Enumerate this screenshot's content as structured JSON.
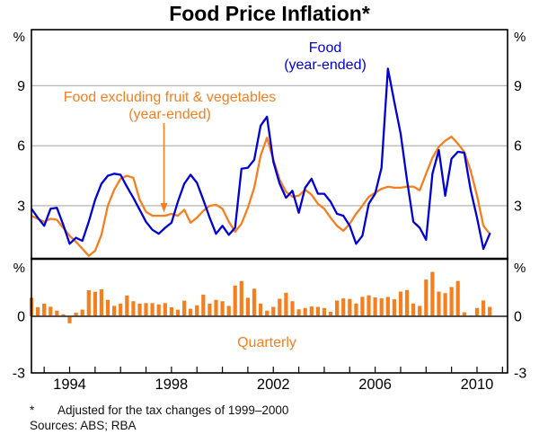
{
  "title": "Food Price Inflation*",
  "legend": {
    "line1": "Food",
    "line2": "(year-ended)"
  },
  "annotation": {
    "line1": "Food excluding fruit & vegetables",
    "line2": "(year-ended)"
  },
  "bars_label": "Quarterly",
  "footnote": {
    "marker": "*",
    "text": "Adjusted for the tax changes of 1999–2000"
  },
  "sources": "Sources: ABS; RBA",
  "axis": {
    "percent": "%"
  },
  "colors": {
    "blue": "#0000d2",
    "orange": "#f57e1f",
    "gridline": "#ababab",
    "frame": "#000000",
    "zero_line": "#3c3c3c"
  },
  "chart_data": {
    "type": "combo",
    "frequency": "quarterly",
    "x_start": 1992.5,
    "x_step": 0.25,
    "xlim": [
      1992.5,
      2011.2
    ],
    "xtick_label_years": [
      1994,
      1998,
      2002,
      2006,
      2010
    ],
    "xtick_labels": [
      "1994",
      "1998",
      "2002",
      "2006",
      "2010"
    ],
    "grid": true,
    "top_panel": {
      "ylim": [
        0.35,
        11.8
      ],
      "yticks": [
        9,
        6,
        3
      ],
      "unit": "%"
    },
    "bottom_panel": {
      "ylim": [
        -3,
        3
      ],
      "yticks": [
        0,
        -3
      ],
      "unit": "%"
    },
    "series": [
      {
        "name": "Food (year-ended)",
        "type": "line",
        "panel": "top",
        "color": "#0000d2",
        "values": [
          2.85,
          2.4,
          2.0,
          2.85,
          2.9,
          2.05,
          1.1,
          1.4,
          1.25,
          2.2,
          3.3,
          4.1,
          4.5,
          4.6,
          4.55,
          3.95,
          3.4,
          2.8,
          2.2,
          1.8,
          1.6,
          1.9,
          2.15,
          3.2,
          4.1,
          4.55,
          4.15,
          3.3,
          2.4,
          1.6,
          2.0,
          1.55,
          1.9,
          4.85,
          4.9,
          5.3,
          7.0,
          7.45,
          5.2,
          4.1,
          3.4,
          3.75,
          2.65,
          3.9,
          4.35,
          3.6,
          3.6,
          3.2,
          2.6,
          2.5,
          2.0,
          1.1,
          1.5,
          3.1,
          3.6,
          4.9,
          9.85,
          8.2,
          6.6,
          4.3,
          2.2,
          1.9,
          1.3,
          4.6,
          5.78,
          3.5,
          5.35,
          5.7,
          5.65,
          3.8,
          2.4,
          0.85,
          1.6
        ]
      },
      {
        "name": "Food excluding fruit & vegetables (year-ended)",
        "type": "line",
        "panel": "top",
        "color": "#f57e1f",
        "values": [
          2.5,
          2.35,
          2.2,
          2.35,
          2.3,
          1.9,
          1.5,
          1.2,
          0.85,
          0.5,
          0.75,
          1.55,
          3.0,
          3.8,
          4.35,
          4.5,
          4.4,
          3.3,
          2.7,
          2.5,
          2.5,
          2.5,
          2.6,
          2.5,
          2.8,
          2.15,
          2.4,
          2.75,
          3.0,
          3.05,
          2.85,
          2.2,
          1.7,
          2.1,
          2.9,
          3.9,
          5.5,
          6.4,
          5.3,
          4.3,
          3.7,
          3.45,
          3.5,
          3.8,
          3.55,
          3.1,
          2.85,
          2.4,
          2.0,
          1.75,
          2.1,
          2.6,
          3.0,
          3.45,
          3.65,
          3.85,
          3.95,
          3.9,
          3.9,
          3.95,
          3.96,
          3.77,
          4.6,
          5.4,
          5.95,
          6.25,
          6.45,
          6.1,
          5.7,
          4.75,
          3.5,
          2.0,
          1.6
        ]
      },
      {
        "name": "Quarterly",
        "type": "bar",
        "panel": "bottom",
        "color": "#f57e1f",
        "values": [
          0.98,
          0.48,
          0.67,
          0.51,
          0.3,
          0.11,
          -0.37,
          0.19,
          0.35,
          1.38,
          1.3,
          1.43,
          0.87,
          0.55,
          0.67,
          1.1,
          0.8,
          0.67,
          0.7,
          0.7,
          0.63,
          0.7,
          0.48,
          0.35,
          0.83,
          0.4,
          0.58,
          1.15,
          0.67,
          0.87,
          0.8,
          0.55,
          1.63,
          1.87,
          0.98,
          1.46,
          0.68,
          0.3,
          0.5,
          0.93,
          1.25,
          0.8,
          0.37,
          0.44,
          0.52,
          0.5,
          0.44,
          0.24,
          0.84,
          0.95,
          0.92,
          0.68,
          1.03,
          1.11,
          1.0,
          0.95,
          1.03,
          0.9,
          1.31,
          1.39,
          0.68,
          0.55,
          1.95,
          2.35,
          1.31,
          1.23,
          1.55,
          1.87,
          0.21,
          0.05,
          0.44,
          0.84,
          0.5
        ]
      }
    ]
  }
}
